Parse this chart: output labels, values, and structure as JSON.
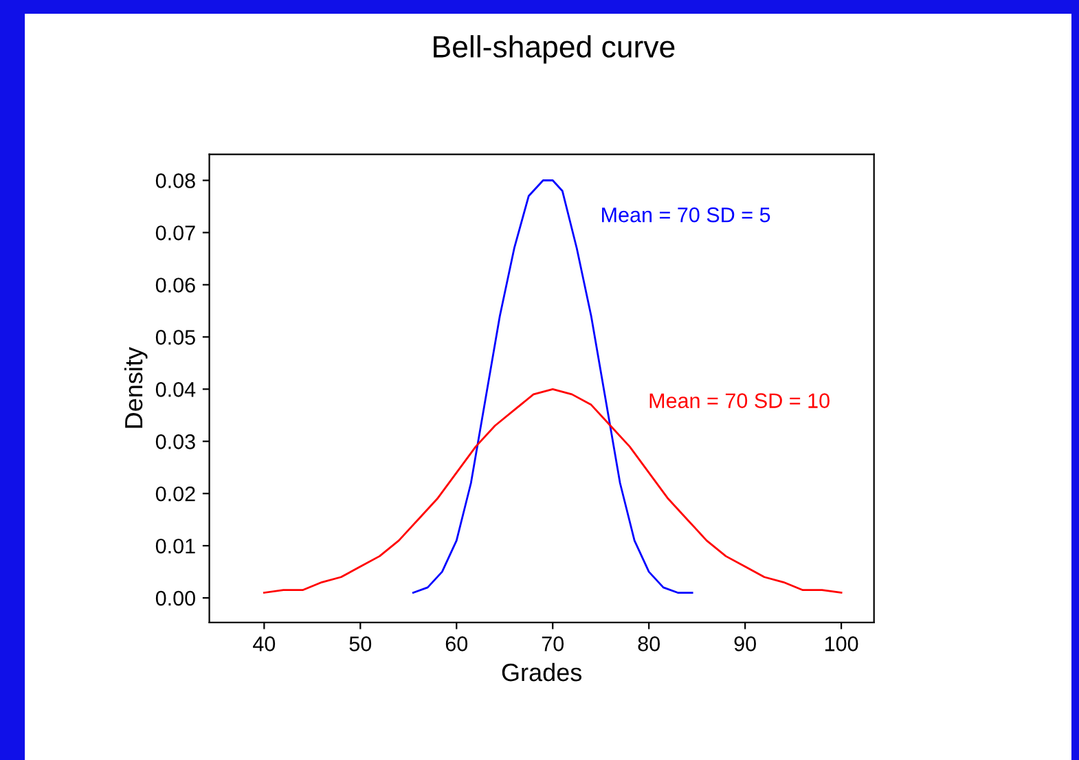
{
  "chart_data": {
    "type": "line",
    "title": "Bell-shaped curve",
    "xlabel": "Grades",
    "ylabel": "Density",
    "xlim": [
      34.3,
      103.4
    ],
    "ylim": [
      -0.0047,
      0.085
    ],
    "xticks": [
      40,
      50,
      60,
      70,
      80,
      90,
      100
    ],
    "yticks": [
      {
        "value": 0,
        "label": "0.00"
      },
      {
        "value": 0.01,
        "label": "0.01"
      },
      {
        "value": 0.02,
        "label": "0.02"
      },
      {
        "value": 0.03,
        "label": "0.03"
      },
      {
        "value": 0.04,
        "label": "0.04"
      },
      {
        "value": 0.05,
        "label": "0.05"
      },
      {
        "value": 0.06,
        "label": "0.06"
      },
      {
        "value": 0.07,
        "label": "0.07"
      },
      {
        "value": 0.08,
        "label": "0.08"
      }
    ],
    "grid": false,
    "marker": "none",
    "line_style": "solid",
    "series": [
      {
        "name": "Mean = 70 SD = 5",
        "color": "#0000ff",
        "x": [
          55.5,
          57,
          58.5,
          60,
          61.5,
          63,
          64.5,
          66,
          67.5,
          69,
          70,
          71,
          72.5,
          74,
          75.5,
          77,
          78.5,
          80,
          81.5,
          83,
          84.5
        ],
        "values": [
          0.001,
          0.002,
          0.005,
          0.011,
          0.022,
          0.038,
          0.054,
          0.067,
          0.077,
          0.08,
          0.08,
          0.078,
          0.067,
          0.054,
          0.038,
          0.022,
          0.011,
          0.005,
          0.002,
          0.001,
          0.001
        ]
      },
      {
        "name": "Mean = 70 SD = 10",
        "color": "#ff0000",
        "x": [
          40,
          42,
          44,
          46,
          48,
          50,
          52,
          54,
          56,
          58,
          60,
          62,
          64,
          66,
          68,
          70,
          72,
          74,
          76,
          78,
          80,
          82,
          84,
          86,
          88,
          90,
          92,
          94,
          96,
          98,
          100
        ],
        "values": [
          0.001,
          0.0015,
          0.0015,
          0.003,
          0.004,
          0.006,
          0.008,
          0.011,
          0.015,
          0.019,
          0.024,
          0.029,
          0.033,
          0.036,
          0.039,
          0.04,
          0.039,
          0.037,
          0.033,
          0.029,
          0.024,
          0.019,
          0.015,
          0.011,
          0.008,
          0.006,
          0.004,
          0.003,
          0.0015,
          0.0015,
          0.001
        ]
      }
    ]
  }
}
